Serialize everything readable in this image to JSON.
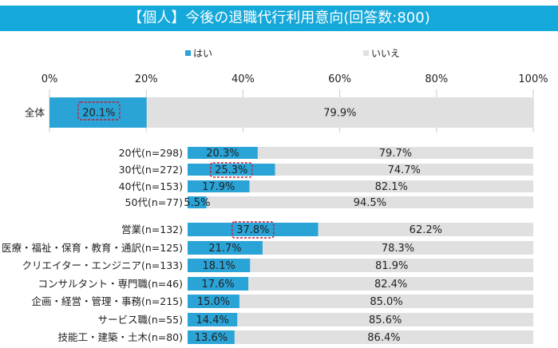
{
  "chart_data": {
    "type": "bar",
    "stacked": true,
    "orientation": "horizontal",
    "title": "【個人】今後の退職代行利用意向(回答数:800)",
    "legend": {
      "placement": "top",
      "entries": [
        "はい",
        "いいえ"
      ]
    },
    "xlim": [
      0,
      100
    ],
    "x_ticks": [
      "0%",
      "20%",
      "40%",
      "60%",
      "80%",
      "100%"
    ],
    "grid": true,
    "colors": {
      "yes": "#2aa3d6",
      "no": "#e0e0e0",
      "highlight": "#c0203a",
      "title_bg": "#15a8da"
    },
    "groups": [
      {
        "categories": [
          "全体"
        ],
        "yes": [
          20.1
        ],
        "no": [
          79.9
        ],
        "highlight": [
          true
        ]
      },
      {
        "categories": [
          "20代(n=298)",
          "30代(n=272)",
          "40代(n=153)",
          "50代(n=77)"
        ],
        "yes": [
          20.3,
          25.3,
          17.9,
          5.5
        ],
        "no": [
          79.7,
          74.7,
          82.1,
          94.5
        ],
        "highlight": [
          false,
          true,
          false,
          false
        ]
      },
      {
        "categories": [
          "営業(n=132)",
          "医療・福祉・保育・教育・通訳(n=125)",
          "クリエイター・エンジニア(n=133)",
          "コンサルタント・専門職(n=46)",
          "企画・経営・管理・事務(n=215)",
          "サービス職(n=55)",
          "技能工・建築・土木(n=80)"
        ],
        "yes": [
          37.8,
          21.7,
          18.1,
          17.6,
          15.0,
          14.4,
          13.6
        ],
        "no": [
          62.2,
          78.3,
          81.9,
          82.4,
          85.0,
          85.6,
          86.4
        ],
        "highlight": [
          true,
          false,
          false,
          false,
          false,
          false,
          false
        ]
      }
    ]
  }
}
